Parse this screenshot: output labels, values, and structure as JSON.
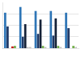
{
  "chart_data": {
    "type": "bar",
    "categories": [
      null,
      null,
      null,
      null,
      null
    ],
    "series": [
      {
        "color": "#2e75b6",
        "values": [
          62,
          72,
          65,
          65,
          62
        ]
      },
      {
        "color": "#1f3864",
        "values": [
          38,
          20,
          25,
          22,
          35
        ]
      },
      {
        "color": "#152238",
        "values": [
          0,
          42,
          50,
          52,
          0
        ]
      },
      {
        "colors": [
          "#c00000",
          "#bfbfbf",
          "#70ad47",
          "#70ad47",
          "#70ad47"
        ],
        "values": [
          3,
          2,
          4,
          4,
          4
        ]
      },
      {
        "colors": [
          "#70ad47",
          "#bfbfbf",
          "#bfbfbf",
          "#bfbfbf",
          "#bfbfbf"
        ],
        "values": [
          4,
          2,
          2,
          2,
          2
        ]
      }
    ],
    "ylim": [
      0,
      80
    ],
    "yticks": [
      20,
      40,
      60
    ],
    "grid": true,
    "tick_labels": false
  }
}
